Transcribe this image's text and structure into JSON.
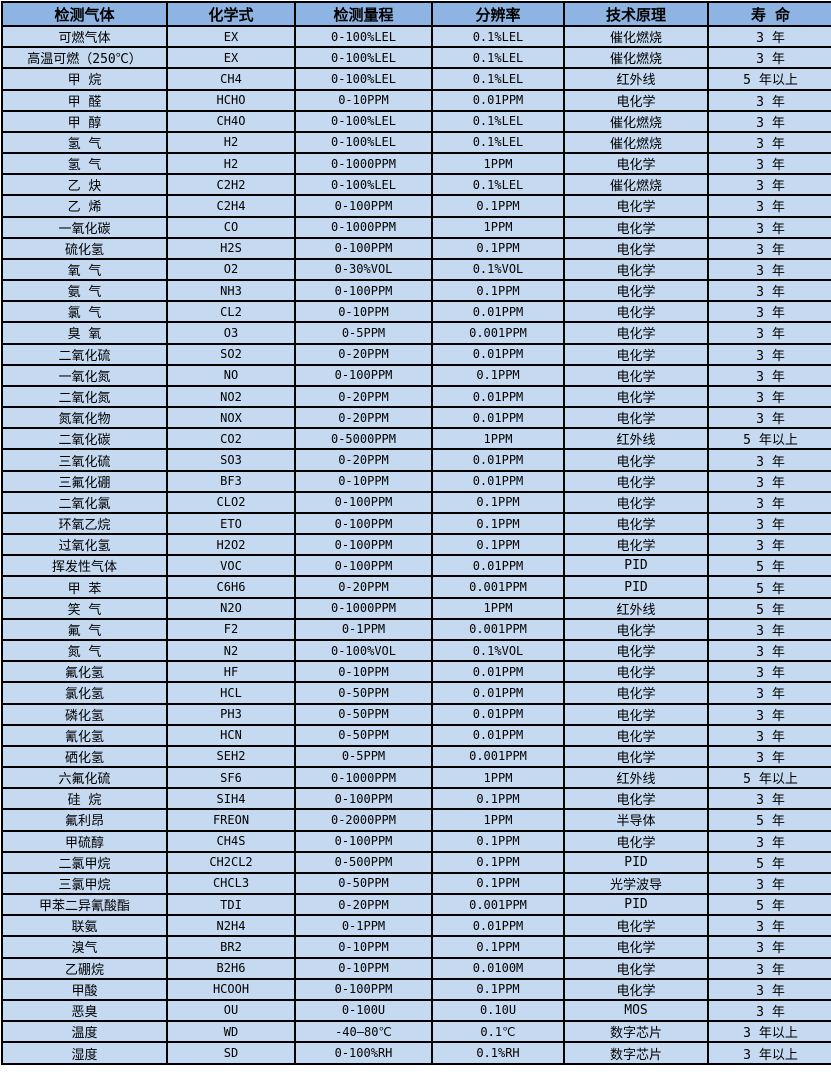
{
  "colors": {
    "header_bg": "#8DB4E2",
    "row_bg": "#C5D9F1",
    "border": "#000000",
    "text": "#000000"
  },
  "table": {
    "headers": [
      "检测气体",
      "化学式",
      "检测量程",
      "分辨率",
      "技术原理",
      "寿 命"
    ],
    "column_keys": [
      "gas",
      "formula",
      "range",
      "resolution",
      "principle",
      "lifespan"
    ],
    "rows": [
      [
        "可燃气体",
        "EX",
        "0-100%LEL",
        "0.1%LEL",
        "催化燃烧",
        "3 年"
      ],
      [
        "高温可燃（250℃）",
        "EX",
        "0-100%LEL",
        "0.1%LEL",
        "催化燃烧",
        "3 年"
      ],
      [
        "甲 烷",
        "CH4",
        "0-100%LEL",
        "0.1%LEL",
        "红外线",
        "5 年以上"
      ],
      [
        "甲 醛",
        "HCHO",
        "0-10PPM",
        "0.01PPM",
        "电化学",
        "3 年"
      ],
      [
        "甲 醇",
        "CH4O",
        "0-100%LEL",
        "0.1%LEL",
        "催化燃烧",
        "3 年"
      ],
      [
        "氢 气",
        "H2",
        "0-100%LEL",
        "0.1%LEL",
        "催化燃烧",
        "3 年"
      ],
      [
        "氢 气",
        "H2",
        "0-1000PPM",
        "1PPM",
        "电化学",
        "3 年"
      ],
      [
        "乙 炔",
        "C2H2",
        "0-100%LEL",
        "0.1%LEL",
        "催化燃烧",
        "3 年"
      ],
      [
        "乙 烯",
        "C2H4",
        "0-100PPM",
        "0.1PPM",
        "电化学",
        "3 年"
      ],
      [
        "一氧化碳",
        "CO",
        "0-1000PPM",
        "1PPM",
        "电化学",
        "3 年"
      ],
      [
        "硫化氢",
        "H2S",
        "0-100PPM",
        "0.1PPM",
        "电化学",
        "3 年"
      ],
      [
        "氧 气",
        "O2",
        "0-30%VOL",
        "0.1%VOL",
        "电化学",
        "3 年"
      ],
      [
        "氨 气",
        "NH3",
        "0-100PPM",
        "0.1PPM",
        "电化学",
        "3 年"
      ],
      [
        "氯 气",
        "CL2",
        "0-10PPM",
        "0.01PPM",
        "电化学",
        "3 年"
      ],
      [
        "臭 氧",
        "O3",
        "0-5PPM",
        "0.001PPM",
        "电化学",
        "3 年"
      ],
      [
        "二氧化硫",
        "SO2",
        "0-20PPM",
        "0.01PPM",
        "电化学",
        "3 年"
      ],
      [
        "一氧化氮",
        "NO",
        "0-100PPM",
        "0.1PPM",
        "电化学",
        "3 年"
      ],
      [
        "二氧化氮",
        "NO2",
        "0-20PPM",
        "0.01PPM",
        "电化学",
        "3 年"
      ],
      [
        "氮氧化物",
        "NOX",
        "0-20PPM",
        "0.01PPM",
        "电化学",
        "3 年"
      ],
      [
        "二氧化碳",
        "CO2",
        "0-5000PPM",
        "1PPM",
        "红外线",
        "5 年以上"
      ],
      [
        "三氧化硫",
        "SO3",
        "0-20PPM",
        "0.01PPM",
        "电化学",
        "3 年"
      ],
      [
        "三氟化硼",
        "BF3",
        "0-10PPM",
        "0.01PPM",
        "电化学",
        "3 年"
      ],
      [
        "二氧化氯",
        "CLO2",
        "0-100PPM",
        "0.1PPM",
        "电化学",
        "3 年"
      ],
      [
        "环氧乙烷",
        "ETO",
        "0-100PPM",
        "0.1PPM",
        "电化学",
        "3 年"
      ],
      [
        "过氧化氢",
        "H2O2",
        "0-100PPM",
        "0.1PPM",
        "电化学",
        "3 年"
      ],
      [
        "挥发性气体",
        "VOC",
        "0-100PPM",
        "0.01PPM",
        "PID",
        "5 年"
      ],
      [
        "甲 苯",
        "C6H6",
        "0-20PPM",
        "0.001PPM",
        "PID",
        "5 年"
      ],
      [
        "笑 气",
        "N2O",
        "0-1000PPM",
        "1PPM",
        "红外线",
        "5 年"
      ],
      [
        "氟 气",
        "F2",
        "0-1PPM",
        "0.001PPM",
        "电化学",
        "3 年"
      ],
      [
        "氮 气",
        "N2",
        "0-100%VOL",
        "0.1%VOL",
        "电化学",
        "3 年"
      ],
      [
        "氟化氢",
        "HF",
        "0-10PPM",
        "0.01PPM",
        "电化学",
        "3 年"
      ],
      [
        "氯化氢",
        "HCL",
        "0-50PPM",
        "0.01PPM",
        "电化学",
        "3 年"
      ],
      [
        "磷化氢",
        "PH3",
        "0-50PPM",
        "0.01PPM",
        "电化学",
        "3 年"
      ],
      [
        "氰化氢",
        "HCN",
        "0-50PPM",
        "0.01PPM",
        "电化学",
        "3 年"
      ],
      [
        "硒化氢",
        "SEH2",
        "0-5PPM",
        "0.001PPM",
        "电化学",
        "3 年"
      ],
      [
        "六氟化硫",
        "SF6",
        "0-1000PPM",
        "1PPM",
        "红外线",
        "5 年以上"
      ],
      [
        "硅 烷",
        "SIH4",
        "0-100PPM",
        "0.1PPM",
        "电化学",
        "3 年"
      ],
      [
        "氟利昂",
        "FREON",
        "0-2000PPM",
        "1PPM",
        "半导体",
        "5 年"
      ],
      [
        "甲硫醇",
        "CH4S",
        "0-100PPM",
        "0.1PPM",
        "电化学",
        "3 年"
      ],
      [
        "二氯甲烷",
        "CH2CL2",
        "0-500PPM",
        "0.1PPM",
        "PID",
        "5 年"
      ],
      [
        "三氯甲烷",
        "CHCL3",
        "0-50PPM",
        "0.1PPM",
        "光学波导",
        "3 年"
      ],
      [
        "甲苯二异氰酸酯",
        "TDI",
        "0-20PPM",
        "0.001PPM",
        "PID",
        "5 年"
      ],
      [
        "联氨",
        "N2H4",
        "0-1PPM",
        "0.01PPM",
        "电化学",
        "3 年"
      ],
      [
        "溴气",
        "BR2",
        "0-10PPM",
        "0.1PPM",
        "电化学",
        "3 年"
      ],
      [
        "乙硼烷",
        "B2H6",
        "0-10PPM",
        "0.0100M",
        "电化学",
        "3 年"
      ],
      [
        "甲酸",
        "HCOOH",
        "0-100PPM",
        "0.1PPM",
        "电化学",
        "3 年"
      ],
      [
        "恶臭",
        "OU",
        "0-100U",
        "0.10U",
        "MOS",
        "3 年"
      ],
      [
        "温度",
        "WD",
        "-40—80℃",
        "0.1℃",
        "数字芯片",
        "3 年以上"
      ],
      [
        "湿度",
        "SD",
        "0-100%RH",
        "0.1%RH",
        "数字芯片",
        "3 年以上"
      ]
    ]
  }
}
